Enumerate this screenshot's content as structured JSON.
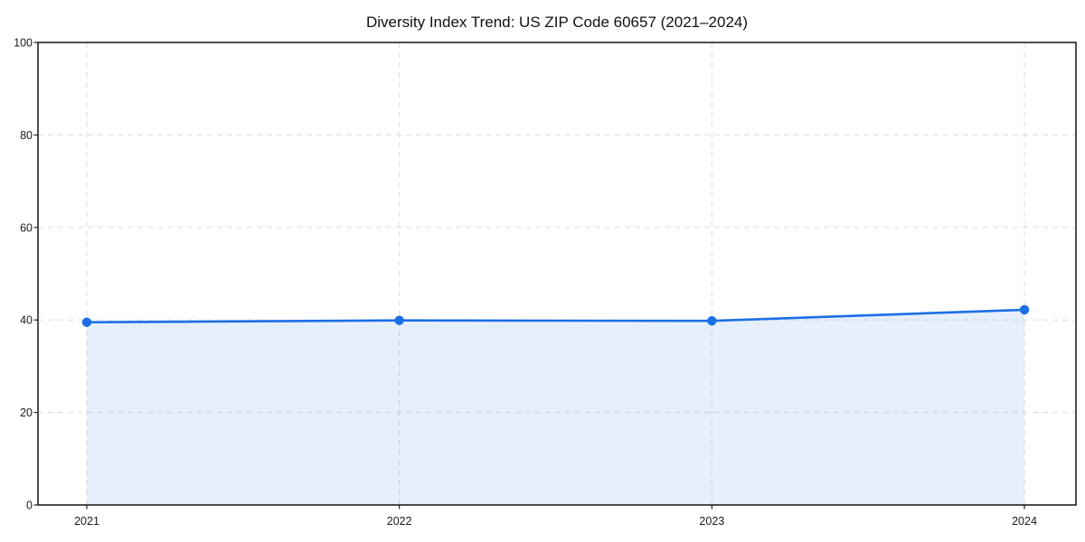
{
  "page": {
    "background": "#ffffff"
  },
  "chart_data": {
    "type": "line",
    "title": "Diversity Index Trend: US ZIP Code 60657 (2021–2024)",
    "categories": [
      "2021",
      "2022",
      "2023",
      "2024"
    ],
    "series": [
      {
        "name": "Diversity Index",
        "values": [
          39.5,
          39.9,
          39.8,
          42.2
        ]
      }
    ],
    "xlabel": "",
    "ylabel": "",
    "ylim": [
      0,
      100
    ],
    "yticks": [
      0,
      20,
      40,
      60,
      80,
      100
    ],
    "grid": true,
    "grid_style": "dashed",
    "legend": "none",
    "area_fill": true,
    "marker": "circle",
    "colors": {
      "line": "#1b6fe6",
      "fill": "#1b6fe6",
      "fill_opacity": 0.11,
      "grid": "#dcdcdc",
      "spine": "#222222",
      "tick_text": "#1a1a1a",
      "title_text": "#111111",
      "background": "#ffffff"
    }
  }
}
